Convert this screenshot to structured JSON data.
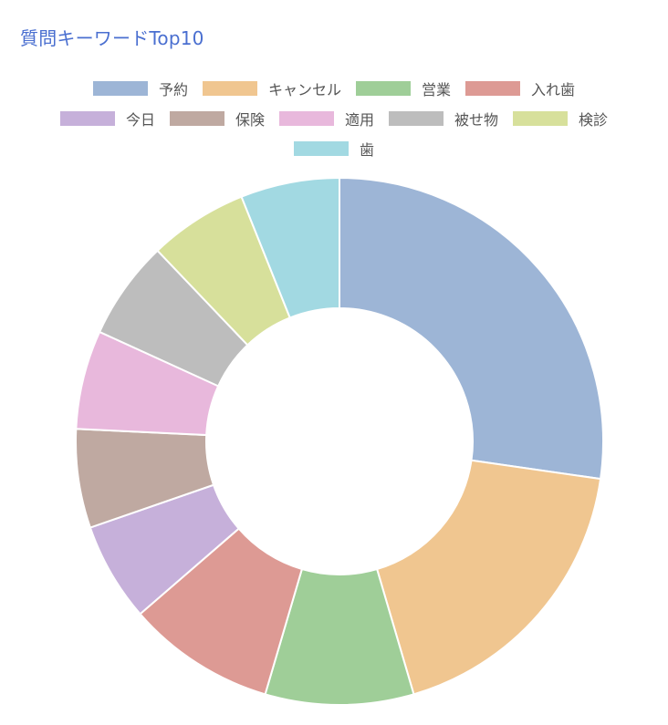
{
  "title": "質問キーワードTop10",
  "chart_data": {
    "type": "pie",
    "donut": true,
    "legend_position": "top",
    "categories": [
      "予約",
      "キャンセル",
      "営業",
      "入れ歯",
      "今日",
      "保険",
      "適用",
      "被せ物",
      "検診",
      "歯"
    ],
    "values": [
      27,
      18,
      9,
      9,
      6,
      6,
      6,
      6,
      6,
      6
    ],
    "colors": [
      "#9db5d6",
      "#f0c690",
      "#9fce98",
      "#dd9a94",
      "#c6b0da",
      "#bfa9a1",
      "#e8b8dc",
      "#bdbdbd",
      "#d7e09b",
      "#a2d9e2"
    ]
  }
}
